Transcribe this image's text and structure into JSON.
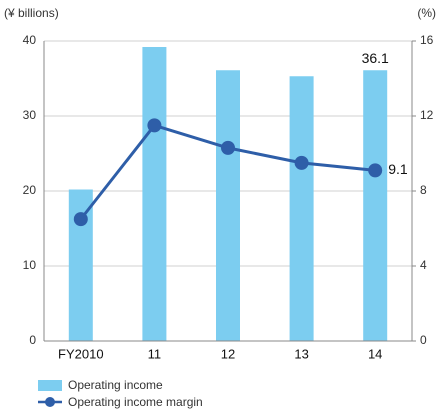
{
  "chart_data": {
    "type": "bar_line",
    "y_label": "(¥ billions)",
    "y2_label": "(%)",
    "categories": [
      "FY2010",
      "11",
      "12",
      "13",
      "14"
    ],
    "series": [
      {
        "name": "Operating income",
        "color": "#7ccdf0",
        "type": "bar",
        "values": [
          20.2,
          39.2,
          36.1,
          35.3,
          36.1
        ]
      },
      {
        "name": "Operating income margin",
        "color": "#2e5ea8",
        "type": "line",
        "axis": "y2",
        "values": [
          6.5,
          11.5,
          10.3,
          9.5,
          9.1
        ]
      }
    ],
    "ylim": [
      0,
      40
    ],
    "yticks": [
      0,
      10,
      20,
      30,
      40
    ],
    "y2lim": [
      0,
      16
    ],
    "y2ticks": [
      0,
      4,
      8,
      12,
      16
    ],
    "grid": true,
    "legend": "bottom-left"
  }
}
